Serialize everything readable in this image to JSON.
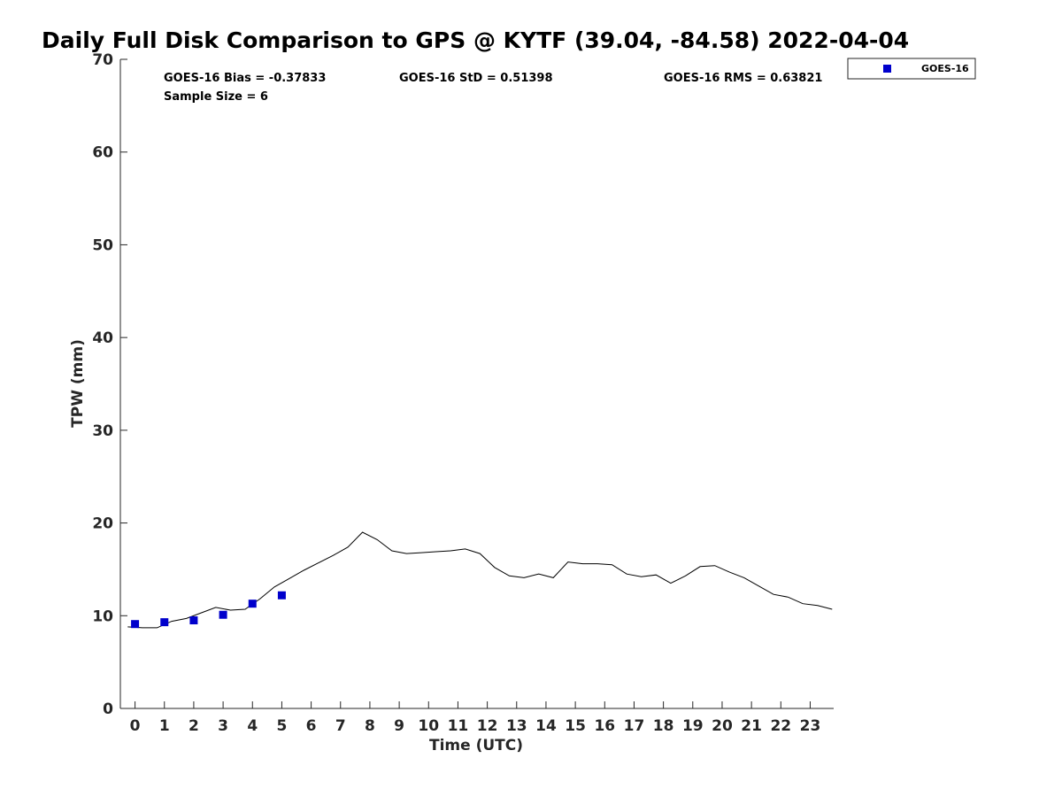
{
  "chart_data": {
    "type": "line",
    "title": "Daily Full Disk Comparison to GPS @ KYTF (39.04, -84.58) 2022-04-04",
    "xlabel": "Time (UTC)",
    "ylabel": "TPW (mm)",
    "xlim": [
      -0.5,
      23.8
    ],
    "ylim": [
      0,
      70
    ],
    "xticks": [
      0,
      1,
      2,
      3,
      4,
      5,
      6,
      7,
      8,
      9,
      10,
      11,
      12,
      13,
      14,
      15,
      16,
      17,
      18,
      19,
      20,
      21,
      22,
      23
    ],
    "yticks": [
      0,
      10,
      20,
      30,
      40,
      50,
      60,
      70
    ],
    "grid": false,
    "legend_position": "top-right, outside plot",
    "stats": {
      "bias": "GOES-16 Bias = -0.37833",
      "std": "GOES-16 StD = 0.51398",
      "rms": "GOES-16 RMS = 0.63821",
      "sample": "Sample Size = 6"
    },
    "legend": [
      {
        "label": "GOES-16",
        "color": "#0000cc",
        "marker": "square"
      }
    ],
    "gps_line": {
      "color": "#000000",
      "x": [
        -0.25,
        0.25,
        0.75,
        1.25,
        1.75,
        2.25,
        2.75,
        3.25,
        3.75,
        4.25,
        4.75,
        5.25,
        5.75,
        6.25,
        6.75,
        7.25,
        7.75,
        8.25,
        8.75,
        9.25,
        9.75,
        10.25,
        10.75,
        11.25,
        11.75,
        12.25,
        12.75,
        13.25,
        13.75,
        14.25,
        14.75,
        15.25,
        15.75,
        16.25,
        16.75,
        17.25,
        17.75,
        18.25,
        18.75,
        19.25,
        19.75,
        20.25,
        20.75,
        21.25,
        21.75,
        22.25,
        22.75,
        23.25,
        23.75
      ],
      "y": [
        8.8,
        8.7,
        8.7,
        9.4,
        9.7,
        10.3,
        10.9,
        10.6,
        10.7,
        11.8,
        13.1,
        14.0,
        14.9,
        15.7,
        16.5,
        17.4,
        19.0,
        18.2,
        17.0,
        16.7,
        16.8,
        16.9,
        17.0,
        17.2,
        16.7,
        15.2,
        14.3,
        14.1,
        14.5,
        14.1,
        15.8,
        15.6,
        15.6,
        15.5,
        14.5,
        14.2,
        14.4,
        13.5,
        14.3,
        15.3,
        15.4,
        14.7,
        14.1,
        13.2,
        12.3,
        12.0,
        11.3,
        11.1,
        10.7
      ]
    },
    "series": [
      {
        "name": "GOES-16",
        "color": "#0000cc",
        "marker": "square",
        "x": [
          0,
          1,
          2,
          3,
          4,
          5
        ],
        "y": [
          9.1,
          9.3,
          9.5,
          10.1,
          11.3,
          12.2
        ]
      }
    ]
  }
}
